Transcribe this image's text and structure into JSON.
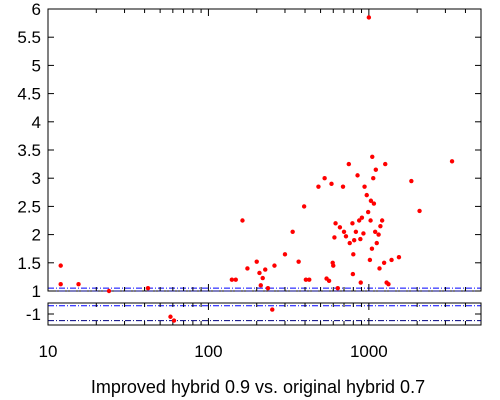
{
  "chart_data": {
    "type": "scatter",
    "xlabel": "Improved hybrid 0.9 vs. original hybrid 0.7",
    "ylabel": "",
    "x_scale": "log",
    "xlim": [
      10,
      5000
    ],
    "x_ticks": [
      10,
      100,
      1000
    ],
    "x_tick_labels": [
      "10",
      "100",
      "1000"
    ],
    "upper_panel": {
      "ylim": [
        1,
        6
      ],
      "y_ticks": [
        1,
        1.5,
        2,
        2.5,
        3,
        3.5,
        4,
        4.5,
        5,
        5.5,
        6
      ],
      "y_tick_labels": [
        "1",
        "1.5",
        "2",
        "2.5",
        "3",
        "3.5",
        "4",
        "4.5",
        "5",
        "5.5",
        "6"
      ],
      "reference_lines": [
        1.0,
        1.05
      ]
    },
    "lower_panel": {
      "y_ticks": [
        -1
      ],
      "y_tick_labels": [
        "-1"
      ],
      "reference_lines": [
        -0.85,
        -1.12
      ]
    },
    "marker_color": "#ff0000",
    "ref_line_colors": [
      "#000080",
      "#0000ff"
    ],
    "grid": false,
    "legend": "none",
    "points_upper": [
      [
        12,
        1.45
      ],
      [
        12,
        1.12
      ],
      [
        15.5,
        1.12
      ],
      [
        24,
        1.0
      ],
      [
        42,
        1.05
      ],
      [
        140,
        1.2
      ],
      [
        148,
        1.2
      ],
      [
        163,
        2.25
      ],
      [
        175,
        1.4
      ],
      [
        200,
        1.52
      ],
      [
        208,
        1.32
      ],
      [
        212,
        1.1
      ],
      [
        218,
        1.23
      ],
      [
        226,
        1.38
      ],
      [
        235,
        1.05
      ],
      [
        258,
        1.45
      ],
      [
        300,
        1.65
      ],
      [
        335,
        2.05
      ],
      [
        365,
        1.52
      ],
      [
        395,
        2.5
      ],
      [
        405,
        1.2
      ],
      [
        425,
        1.2
      ],
      [
        485,
        2.85
      ],
      [
        530,
        3.0
      ],
      [
        545,
        1.22
      ],
      [
        565,
        1.18
      ],
      [
        585,
        2.9
      ],
      [
        595,
        1.5
      ],
      [
        600,
        1.45
      ],
      [
        610,
        1.95
      ],
      [
        620,
        2.2
      ],
      [
        640,
        1.05
      ],
      [
        660,
        2.13
      ],
      [
        690,
        2.85
      ],
      [
        700,
        2.05
      ],
      [
        720,
        1.97
      ],
      [
        750,
        3.25
      ],
      [
        760,
        1.85
      ],
      [
        790,
        2.2
      ],
      [
        795,
        1.3
      ],
      [
        800,
        1.65
      ],
      [
        810,
        1.9
      ],
      [
        830,
        2.05
      ],
      [
        850,
        3.05
      ],
      [
        870,
        2.25
      ],
      [
        885,
        1.92
      ],
      [
        890,
        1.15
      ],
      [
        905,
        2.3
      ],
      [
        925,
        2.02
      ],
      [
        940,
        2.85
      ],
      [
        970,
        2.7
      ],
      [
        990,
        2.4
      ],
      [
        1000,
        5.85
      ],
      [
        1015,
        1.55
      ],
      [
        1025,
        2.25
      ],
      [
        1030,
        2.6
      ],
      [
        1045,
        1.75
      ],
      [
        1050,
        3.38
      ],
      [
        1065,
        3.0
      ],
      [
        1075,
        2.55
      ],
      [
        1095,
        2.05
      ],
      [
        1105,
        3.15
      ],
      [
        1120,
        1.85
      ],
      [
        1150,
        2.0
      ],
      [
        1165,
        1.4
      ],
      [
        1180,
        2.15
      ],
      [
        1210,
        2.25
      ],
      [
        1245,
        1.5
      ],
      [
        1265,
        3.25
      ],
      [
        1290,
        1.15
      ],
      [
        1325,
        1.12
      ],
      [
        1385,
        1.55
      ],
      [
        1540,
        1.6
      ],
      [
        1840,
        2.95
      ],
      [
        2070,
        2.42
      ],
      [
        3300,
        3.3
      ]
    ],
    "points_lower": [
      [
        58,
        -1.05
      ],
      [
        61,
        -1.12
      ],
      [
        250,
        -0.92
      ]
    ]
  }
}
